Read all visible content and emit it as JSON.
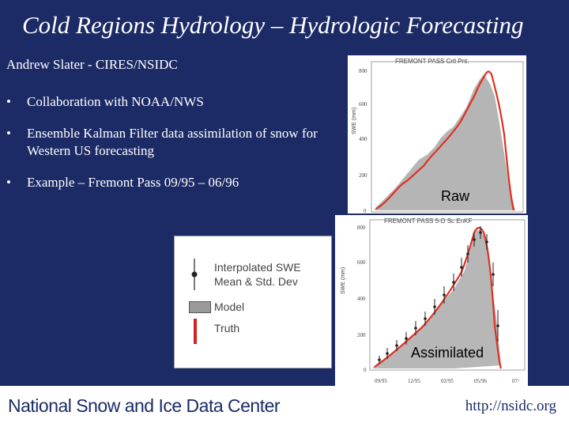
{
  "slide": {
    "title": "Cold Regions Hydrology – Hydrologic Forecasting",
    "author": "Andrew Slater - CIRES/NSIDC",
    "bullet_char": "•",
    "bullets": [
      "Collaboration with NOAA/NWS",
      "Ensemble Kalman Filter data assimilation of snow for Western US forecasting",
      "Example – Fremont Pass 09/95 – 06/96"
    ]
  },
  "legend": {
    "items": [
      "Interpolated SWE Mean & Std. Dev",
      "Model",
      "Truth"
    ],
    "colors": {
      "model": "#9a9a9a",
      "truth": "#d62020",
      "obs": "#222222"
    }
  },
  "plots": {
    "raw": {
      "header": "FREMONT PASS    Crtl Pnt.",
      "ylabel": "SWE (mm)",
      "yticks": [
        "800",
        "600",
        "400",
        "200",
        "0"
      ],
      "label": "Raw"
    },
    "assimilated": {
      "header": "FREMONT PASS    5-D Sc EnKF",
      "ylabel": "SWE (mm)",
      "yticks": [
        "800",
        "600",
        "400",
        "200",
        "0"
      ],
      "xticks": [
        "09/95",
        "12/95",
        "02/95",
        "05/96",
        "07/"
      ],
      "label": "Assimilated"
    }
  },
  "footer": {
    "org": "National Snow and Ice Data Center",
    "url": "http://nsidc.org"
  }
}
